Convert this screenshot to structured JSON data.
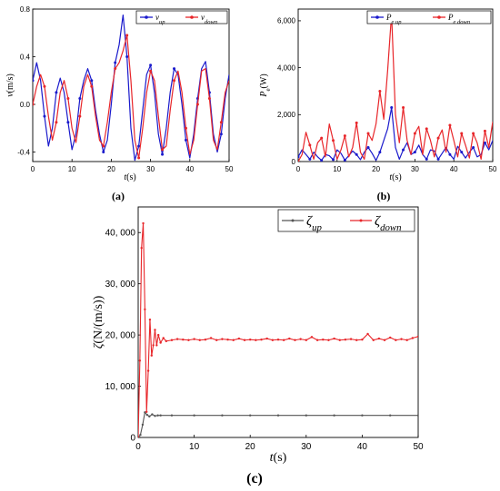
{
  "chart_data": [
    {
      "panel_label": "(a)",
      "type": "line",
      "xlabel": "t(s)",
      "ylabel": "v(m/s)",
      "xlim": [
        0,
        50
      ],
      "ylim": [
        -0.48,
        0.8
      ],
      "x_ticks": [
        "0",
        "10",
        "20",
        "30",
        "40",
        "50"
      ],
      "y_ticks": [
        "-0.4",
        "0.0",
        "0.4",
        "0.8"
      ],
      "legend_position": "top-right",
      "series": [
        {
          "name": "v_up",
          "color": "#1a1acc",
          "x": [
            0,
            1,
            2,
            3,
            4,
            5,
            6,
            7,
            8,
            9,
            10,
            11,
            12,
            13,
            14,
            15,
            16,
            17,
            18,
            19,
            20,
            21,
            22,
            23,
            24,
            25,
            26,
            27,
            28,
            29,
            30,
            31,
            32,
            33,
            34,
            35,
            36,
            37,
            38,
            39,
            40,
            41,
            42,
            43,
            44,
            45,
            46,
            47,
            48,
            49,
            50
          ],
          "y": [
            0.2,
            0.35,
            0.2,
            -0.1,
            -0.35,
            -0.2,
            0.1,
            0.22,
            0.1,
            -0.15,
            -0.38,
            -0.25,
            0.05,
            0.2,
            0.3,
            0.2,
            -0.05,
            -0.25,
            -0.4,
            -0.3,
            0.0,
            0.35,
            0.5,
            0.75,
            0.4,
            -0.2,
            -0.47,
            -0.35,
            -0.05,
            0.25,
            0.33,
            0.1,
            -0.25,
            -0.42,
            -0.2,
            0.1,
            0.3,
            0.25,
            0.0,
            -0.3,
            -0.45,
            -0.25,
            0.05,
            0.3,
            0.36,
            0.1,
            -0.25,
            -0.4,
            -0.25,
            0.05,
            0.25
          ]
        },
        {
          "name": "v_down",
          "color": "#e8262a",
          "x": [
            0,
            1,
            2,
            3,
            4,
            5,
            6,
            7,
            8,
            9,
            10,
            11,
            12,
            13,
            14,
            15,
            16,
            17,
            18,
            19,
            20,
            21,
            22,
            23,
            24,
            25,
            26,
            27,
            28,
            29,
            30,
            31,
            32,
            33,
            34,
            35,
            36,
            37,
            38,
            39,
            40,
            41,
            42,
            43,
            44,
            45,
            46,
            47,
            48,
            49,
            50
          ],
          "y": [
            0.0,
            0.15,
            0.25,
            0.15,
            -0.1,
            -0.3,
            -0.15,
            0.1,
            0.2,
            0.05,
            -0.2,
            -0.32,
            -0.1,
            0.15,
            0.25,
            0.15,
            -0.1,
            -0.3,
            -0.35,
            -0.15,
            0.1,
            0.3,
            0.35,
            0.45,
            0.58,
            0.2,
            -0.3,
            -0.45,
            -0.2,
            0.1,
            0.28,
            0.2,
            -0.1,
            -0.38,
            -0.35,
            -0.05,
            0.2,
            0.28,
            0.1,
            -0.2,
            -0.42,
            -0.3,
            0.0,
            0.28,
            0.3,
            0.05,
            -0.3,
            -0.38,
            -0.15,
            0.1,
            0.2
          ]
        }
      ]
    },
    {
      "panel_label": "(b)",
      "type": "line",
      "xlabel": "t(s)",
      "ylabel": "P_e(W)",
      "xlim": [
        0,
        50
      ],
      "ylim": [
        0,
        6500
      ],
      "x_ticks": [
        "0",
        "10",
        "20",
        "30",
        "40",
        "50"
      ],
      "y_ticks": [
        "0",
        "2,000",
        "4,000",
        "6,000"
      ],
      "legend_position": "top-right",
      "series": [
        {
          "name": "P_e up",
          "color": "#1a1acc",
          "x": [
            0,
            1,
            2,
            3,
            4,
            5,
            6,
            7,
            8,
            9,
            10,
            11,
            12,
            13,
            14,
            15,
            16,
            17,
            18,
            19,
            20,
            21,
            22,
            23,
            24,
            25,
            26,
            27,
            28,
            29,
            30,
            31,
            32,
            33,
            34,
            35,
            36,
            37,
            38,
            39,
            40,
            41,
            42,
            43,
            44,
            45,
            46,
            47,
            48,
            49,
            50
          ],
          "y": [
            200,
            500,
            300,
            100,
            400,
            200,
            50,
            300,
            250,
            80,
            500,
            350,
            60,
            250,
            450,
            300,
            80,
            400,
            600,
            350,
            50,
            400,
            900,
            1400,
            2300,
            600,
            100,
            500,
            800,
            300,
            400,
            700,
            300,
            100,
            500,
            450,
            100,
            350,
            600,
            300,
            100,
            650,
            400,
            150,
            400,
            600,
            200,
            300,
            800,
            500,
            900
          ]
        },
        {
          "name": "P_e down",
          "color": "#e8262a",
          "x": [
            0,
            1,
            2,
            3,
            4,
            5,
            6,
            7,
            8,
            9,
            10,
            11,
            12,
            13,
            14,
            15,
            16,
            17,
            18,
            19,
            20,
            21,
            22,
            23,
            24,
            25,
            26,
            27,
            28,
            29,
            30,
            31,
            32,
            33,
            34,
            35,
            36,
            37,
            38,
            39,
            40,
            41,
            42,
            43,
            44,
            45,
            46,
            47,
            48,
            49,
            50
          ],
          "y": [
            0,
            300,
            1250,
            700,
            100,
            800,
            1000,
            200,
            1600,
            900,
            100,
            500,
            1100,
            200,
            600,
            1650,
            400,
            100,
            1200,
            900,
            1600,
            3000,
            1800,
            3900,
            6300,
            2000,
            800,
            2300,
            900,
            300,
            1200,
            1500,
            300,
            1400,
            900,
            200,
            1000,
            1350,
            400,
            1550,
            900,
            200,
            1200,
            700,
            150,
            1200,
            800,
            100,
            1300,
            600,
            1700
          ]
        }
      ]
    },
    {
      "panel_label": "(c)",
      "type": "line",
      "xlabel": "t(s)",
      "ylabel": "ζ(N/(m/s))",
      "xlim": [
        0,
        50
      ],
      "ylim": [
        0,
        45000
      ],
      "x_ticks": [
        "0",
        "10",
        "20",
        "30",
        "40",
        "50"
      ],
      "y_ticks": [
        "0",
        "10, 000",
        "20, 000",
        "30, 000",
        "40, 000"
      ],
      "legend_position": "top-right",
      "series": [
        {
          "name": "ζ_up",
          "color": "#555555",
          "x": [
            0,
            0.4,
            0.8,
            1.2,
            1.6,
            2.0,
            2.5,
            3.0,
            3.5,
            4,
            6,
            10,
            15,
            20,
            25,
            30,
            35,
            40,
            45,
            50
          ],
          "y": [
            0,
            500,
            2500,
            4900,
            4400,
            4100,
            4500,
            4200,
            4300,
            4300,
            4300,
            4300,
            4300,
            4300,
            4300,
            4300,
            4300,
            4300,
            4300,
            4300
          ]
        },
        {
          "name": "ζ_down",
          "color": "#e8262a",
          "x": [
            0,
            0.3,
            0.6,
            0.9,
            1.2,
            1.5,
            1.8,
            2.1,
            2.4,
            2.7,
            3.0,
            3.3,
            3.6,
            4.0,
            4.5,
            5.0,
            6,
            7,
            8,
            9,
            10,
            11,
            12,
            13,
            14,
            15,
            16,
            17,
            18,
            19,
            20,
            21,
            22,
            23,
            24,
            25,
            26,
            27,
            28,
            29,
            30,
            31,
            32,
            33,
            34,
            35,
            36,
            37,
            38,
            39,
            40,
            41,
            42,
            43,
            44,
            45,
            46,
            47,
            48,
            49,
            50
          ],
          "y": [
            0,
            15000,
            37000,
            41800,
            25000,
            5000,
            13000,
            23000,
            16000,
            18000,
            21000,
            18000,
            20000,
            18500,
            19400,
            18800,
            19000,
            19200,
            19100,
            19000,
            19200,
            19000,
            19100,
            19400,
            19000,
            19200,
            19100,
            19000,
            19300,
            19000,
            19100,
            19000,
            19100,
            19300,
            19000,
            19100,
            19000,
            19300,
            19000,
            19200,
            19000,
            19600,
            19000,
            19100,
            19000,
            19300,
            19000,
            19100,
            19200,
            19000,
            19100,
            20200,
            19000,
            19300,
            19000,
            19500,
            19000,
            19200,
            19000,
            19400,
            19700
          ]
        }
      ]
    }
  ]
}
